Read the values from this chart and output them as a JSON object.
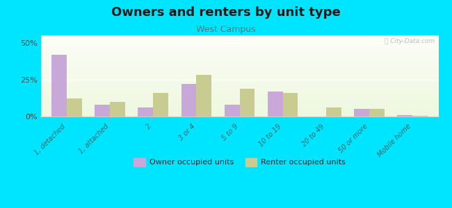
{
  "title": "Owners and renters by unit type",
  "subtitle": "West Campus",
  "categories": [
    "1, detached",
    "1, attached",
    "2",
    "3 or 4",
    "5 to 9",
    "10 to 19",
    "20 to 49",
    "50 or more",
    "Mobile home"
  ],
  "owner_values": [
    42,
    8,
    6,
    22,
    8,
    17,
    0,
    5,
    1
  ],
  "renter_values": [
    12,
    10,
    16,
    28,
    19,
    16,
    6,
    5,
    0.5
  ],
  "owner_color": "#c8a8d8",
  "renter_color": "#c8cc90",
  "background_color": "#00e5ff",
  "ylabel_ticks": [
    0,
    25,
    50
  ],
  "ylim": [
    0,
    55
  ],
  "bar_width": 0.35,
  "title_fontsize": 13,
  "subtitle_fontsize": 9,
  "legend_labels": [
    "Owner occupied units",
    "Renter occupied units"
  ],
  "watermark": "Ⓛ City-Data.com"
}
